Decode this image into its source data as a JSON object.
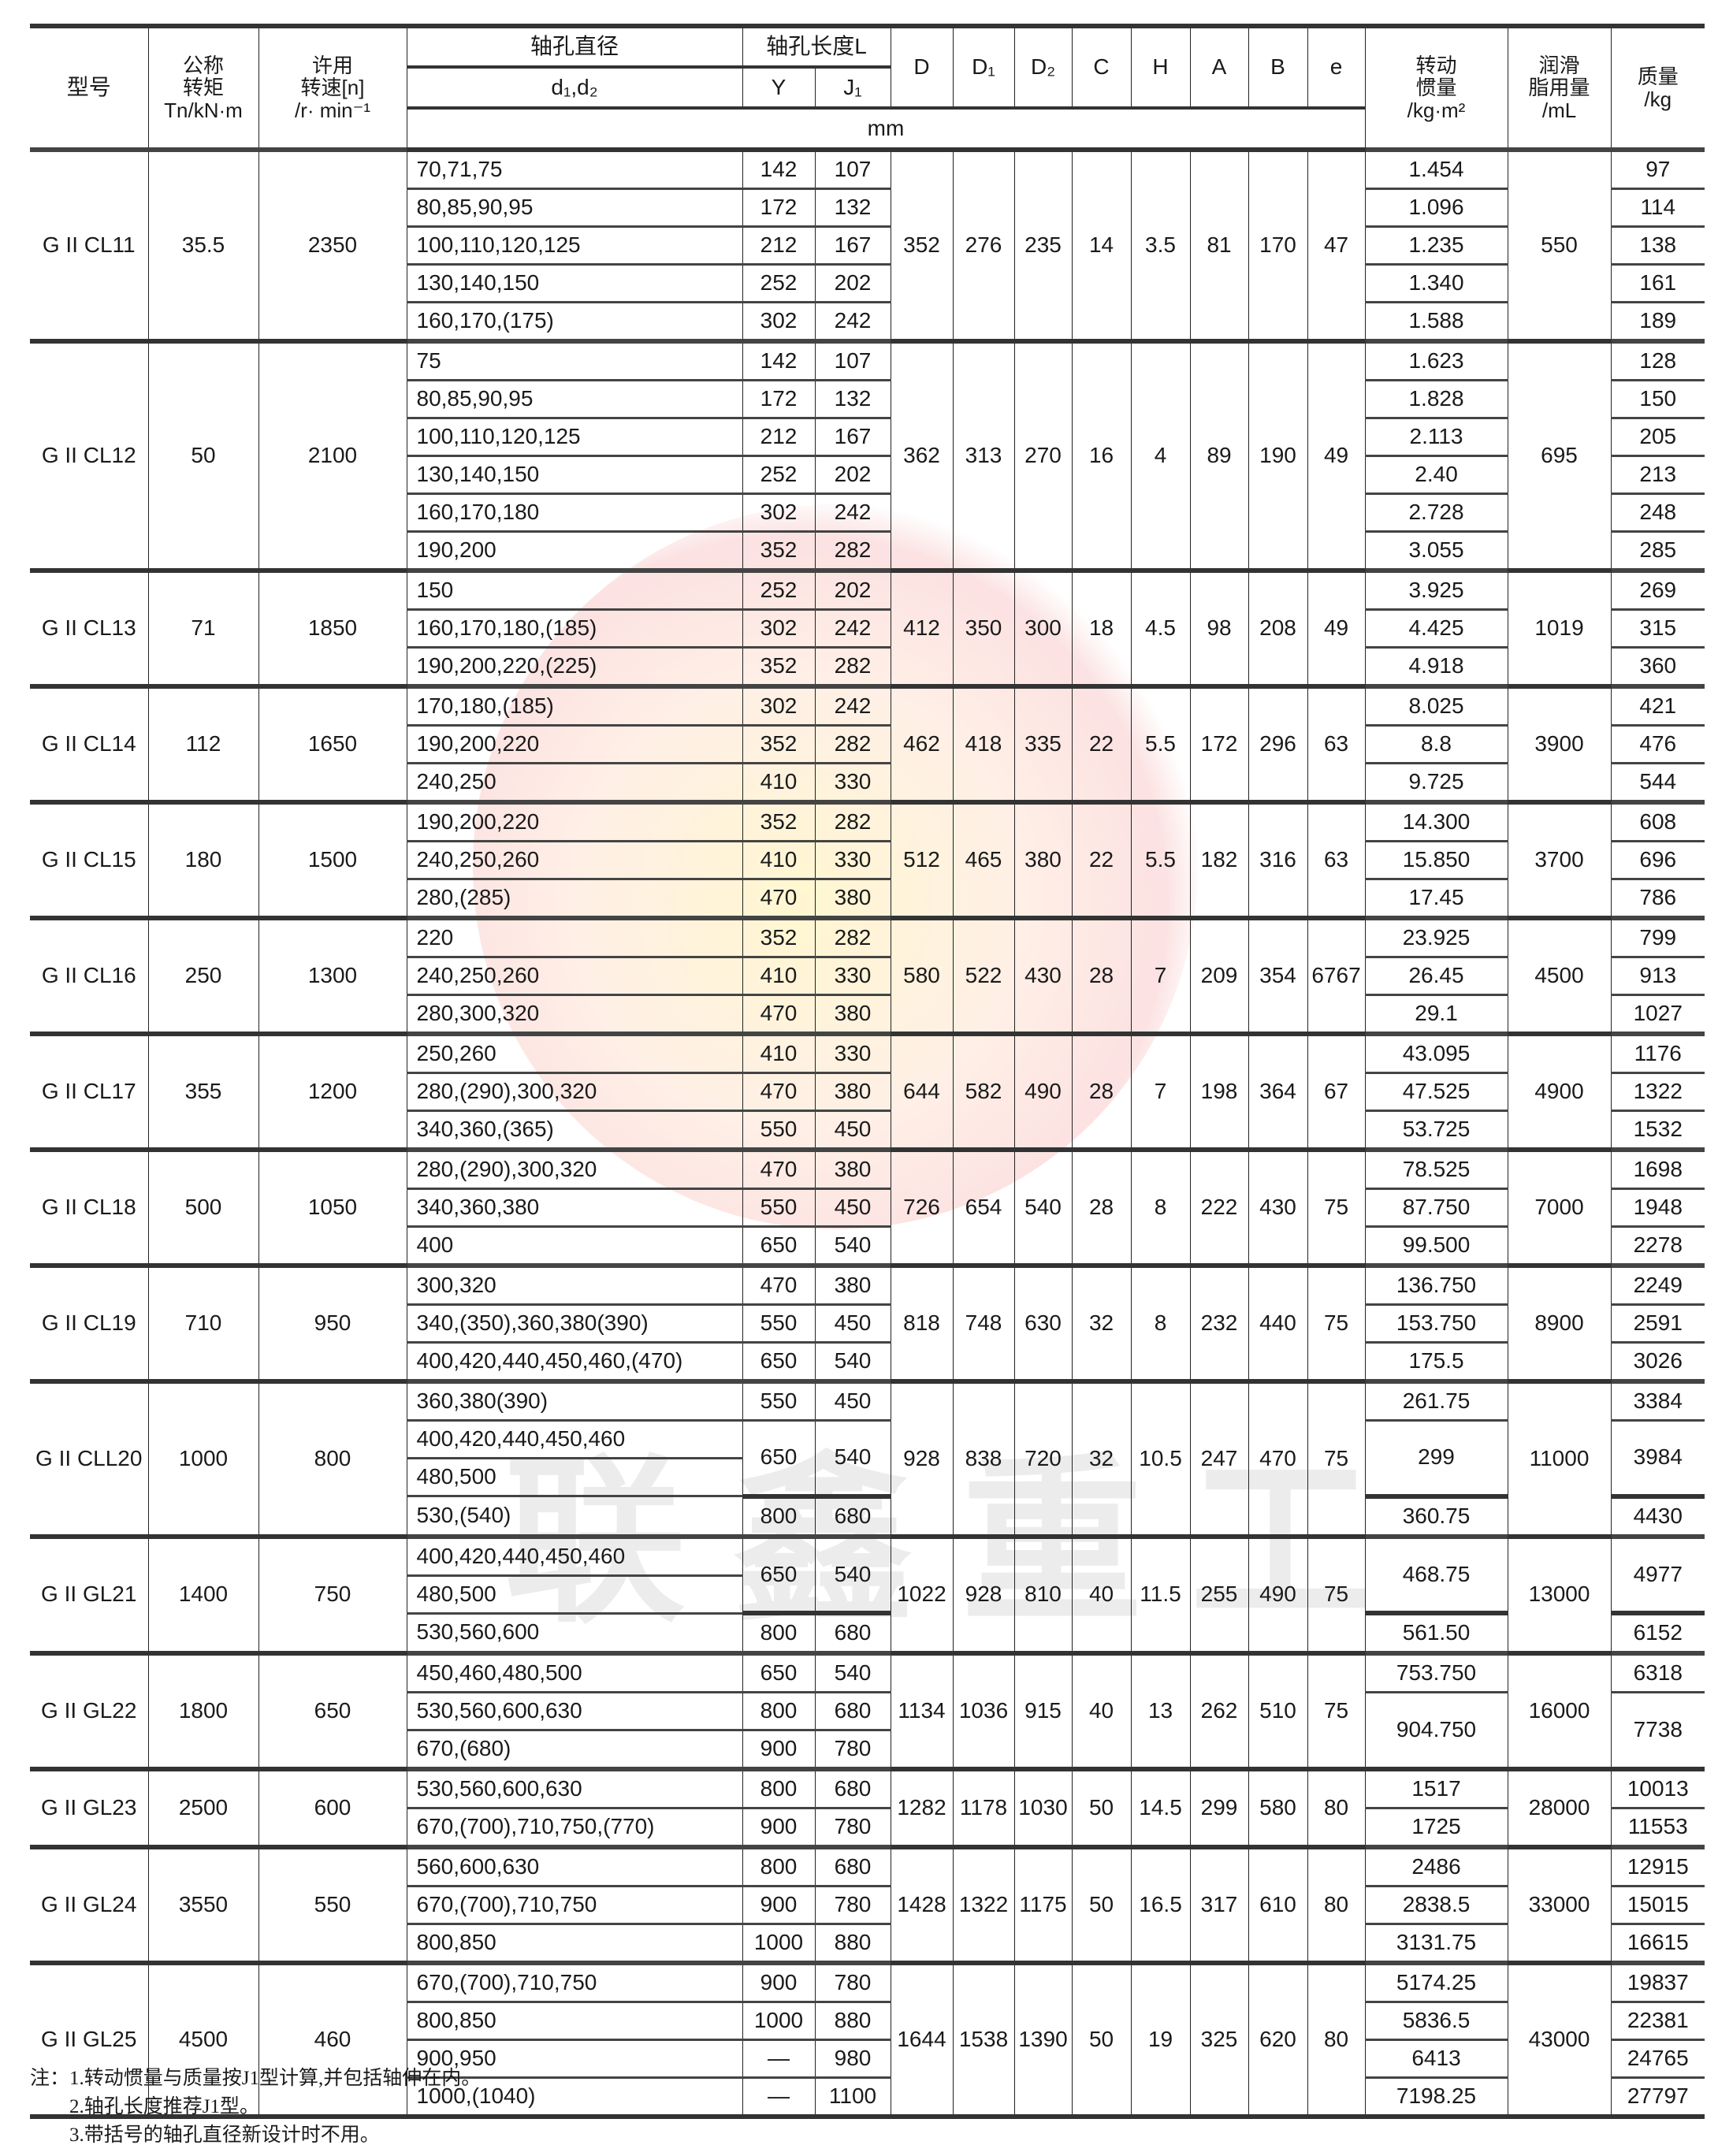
{
  "header": {
    "model": "型号",
    "torque": [
      "公称",
      "转矩",
      "Tn/kN·m"
    ],
    "speed": [
      "许用",
      "转速[n]",
      "/r·  min⁻¹"
    ],
    "bore_diameter": "轴孔直径",
    "bore_diameter_sub": "d₁,d₂",
    "bore_length": "轴孔长度L",
    "bore_length_y": "Y",
    "bore_length_j1": "J₁",
    "dims": [
      "D",
      "D₁",
      "D₂",
      "C",
      "H",
      "A",
      "B",
      "e"
    ],
    "dims_unit": "mm",
    "inertia": [
      "转动",
      "惯量",
      "/kg·m²"
    ],
    "grease": [
      "润滑",
      "脂用量",
      "/mL"
    ],
    "mass": [
      "质量",
      "/kg"
    ]
  },
  "groups": [
    {
      "model": "G II CL11",
      "torque": "35.5",
      "speed": "2350",
      "dims": [
        "352",
        "276",
        "235",
        "14",
        "3.5",
        "81",
        "170",
        "47"
      ],
      "grease": "550",
      "rows": [
        {
          "d": "70,71,75",
          "y": "142",
          "j1": "107",
          "inertia": "1.454",
          "mass": "97"
        },
        {
          "d": "80,85,90,95",
          "y": "172",
          "j1": "132",
          "inertia": "1.096",
          "mass": "114"
        },
        {
          "d": "100,110,120,125",
          "y": "212",
          "j1": "167",
          "inertia": "1.235",
          "mass": "138"
        },
        {
          "d": "130,140,150",
          "y": "252",
          "j1": "202",
          "inertia": "1.340",
          "mass": "161"
        },
        {
          "d": "160,170,(175)",
          "y": "302",
          "j1": "242",
          "inertia": "1.588",
          "mass": "189"
        }
      ]
    },
    {
      "model": "G II CL12",
      "torque": "50",
      "speed": "2100",
      "dims": [
        "362",
        "313",
        "270",
        "16",
        "4",
        "89",
        "190",
        "49"
      ],
      "grease": "695",
      "rows": [
        {
          "d": "75",
          "y": "142",
          "j1": "107",
          "inertia": "1.623",
          "mass": "128"
        },
        {
          "d": "80,85,90,95",
          "y": "172",
          "j1": "132",
          "inertia": "1.828",
          "mass": "150"
        },
        {
          "d": "100,110,120,125",
          "y": "212",
          "j1": "167",
          "inertia": "2.113",
          "mass": "205"
        },
        {
          "d": "130,140,150",
          "y": "252",
          "j1": "202",
          "inertia": "2.40",
          "mass": "213"
        },
        {
          "d": "160,170,180",
          "y": "302",
          "j1": "242",
          "inertia": "2.728",
          "mass": "248"
        },
        {
          "d": "190,200",
          "y": "352",
          "j1": "282",
          "inertia": "3.055",
          "mass": "285"
        }
      ]
    },
    {
      "model": "G II CL13",
      "torque": "71",
      "speed": "1850",
      "dims": [
        "412",
        "350",
        "300",
        "18",
        "4.5",
        "98",
        "208",
        "49"
      ],
      "grease": "1019",
      "rows": [
        {
          "d": "150",
          "y": "252",
          "j1": "202",
          "inertia": "3.925",
          "mass": "269"
        },
        {
          "d": "160,170,180,(185)",
          "y": "302",
          "j1": "242",
          "inertia": "4.425",
          "mass": "315"
        },
        {
          "d": "190,200,220,(225)",
          "y": "352",
          "j1": "282",
          "inertia": "4.918",
          "mass": "360"
        }
      ]
    },
    {
      "model": "G II CL14",
      "torque": "112",
      "speed": "1650",
      "dims": [
        "462",
        "418",
        "335",
        "22",
        "5.5",
        "172",
        "296",
        "63"
      ],
      "grease": "3900",
      "rows": [
        {
          "d": "170,180,(185)",
          "y": "302",
          "j1": "242",
          "inertia": "8.025",
          "mass": "421"
        },
        {
          "d": "190,200,220",
          "y": "352",
          "j1": "282",
          "inertia": "8.8",
          "mass": "476"
        },
        {
          "d": "240,250",
          "y": "410",
          "j1": "330",
          "inertia": "9.725",
          "mass": "544"
        }
      ]
    },
    {
      "model": "G II CL15",
      "torque": "180",
      "speed": "1500",
      "dims": [
        "512",
        "465",
        "380",
        "22",
        "5.5",
        "182",
        "316",
        "63"
      ],
      "grease": "3700",
      "rows": [
        {
          "d": "190,200,220",
          "y": "352",
          "j1": "282",
          "inertia": "14.300",
          "mass": "608"
        },
        {
          "d": "240,250,260",
          "y": "410",
          "j1": "330",
          "inertia": "15.850",
          "mass": "696"
        },
        {
          "d": "280,(285)",
          "y": "470",
          "j1": "380",
          "inertia": "17.45",
          "mass": "786"
        }
      ]
    },
    {
      "model": "G II CL16",
      "torque": "250",
      "speed": "1300",
      "dims": [
        "580",
        "522",
        "430",
        "28",
        "7",
        "209",
        "354",
        "6767"
      ],
      "grease": "4500",
      "rows": [
        {
          "d": "220",
          "y": "352",
          "j1": "282",
          "inertia": "23.925",
          "mass": "799"
        },
        {
          "d": "240,250,260",
          "y": "410",
          "j1": "330",
          "inertia": "26.45",
          "mass": "913"
        },
        {
          "d": "280,300,320",
          "y": "470",
          "j1": "380",
          "inertia": "29.1",
          "mass": "1027"
        }
      ]
    },
    {
      "model": "G II CL17",
      "torque": "355",
      "speed": "1200",
      "dims": [
        "644",
        "582",
        "490",
        "28",
        "7",
        "198",
        "364",
        "67"
      ],
      "grease": "4900",
      "rows": [
        {
          "d": "250,260",
          "y": "410",
          "j1": "330",
          "inertia": "43.095",
          "mass": "1176"
        },
        {
          "d": "280,(290),300,320",
          "y": "470",
          "j1": "380",
          "inertia": "47.525",
          "mass": "1322"
        },
        {
          "d": "340,360,(365)",
          "y": "550",
          "j1": "450",
          "inertia": "53.725",
          "mass": "1532"
        }
      ]
    },
    {
      "model": "G II CL18",
      "torque": "500",
      "speed": "1050",
      "dims": [
        "726",
        "654",
        "540",
        "28",
        "8",
        "222",
        "430",
        "75"
      ],
      "grease": "7000",
      "rows": [
        {
          "d": "280,(290),300,320",
          "y": "470",
          "j1": "380",
          "inertia": "78.525",
          "mass": "1698"
        },
        {
          "d": "340,360,380",
          "y": "550",
          "j1": "450",
          "inertia": "87.750",
          "mass": "1948"
        },
        {
          "d": "400",
          "y": "650",
          "j1": "540",
          "inertia": "99.500",
          "mass": "2278"
        }
      ]
    },
    {
      "model": "G II CL19",
      "torque": "710",
      "speed": "950",
      "dims": [
        "818",
        "748",
        "630",
        "32",
        "8",
        "232",
        "440",
        "75"
      ],
      "grease": "8900",
      "rows": [
        {
          "d": "300,320",
          "y": "470",
          "j1": "380",
          "inertia": "136.750",
          "mass": "2249"
        },
        {
          "d": "340,(350),360,380(390)",
          "y": "550",
          "j1": "450",
          "inertia": "153.750",
          "mass": "2591"
        },
        {
          "d": "400,420,440,450,460,(470)",
          "y": "650",
          "j1": "540",
          "inertia": "175.5",
          "mass": "3026"
        }
      ]
    },
    {
      "model": "G II CLL20",
      "torque": "1000",
      "speed": "800",
      "dims": [
        "928",
        "838",
        "720",
        "32",
        "10.5",
        "247",
        "470",
        "75"
      ],
      "grease": "11000",
      "rows": [
        {
          "d": "360,380(390)",
          "y": "550",
          "j1": "450",
          "inertia": "261.75",
          "mass": "3384"
        },
        {
          "d": "400,420,440,450,460",
          "y": "650",
          "j1": "540",
          "len_merge": 2,
          "inertia": "299",
          "mass": "3984",
          "val_merge": 2
        },
        {
          "d": "480,500",
          "y": null,
          "j1": null,
          "inertia": null,
          "mass": null
        },
        {
          "d": "530,(540)",
          "y": "800",
          "j1": "680",
          "inertia": "360.75",
          "mass": "4430"
        }
      ]
    },
    {
      "model": "G II GL21",
      "torque": "1400",
      "speed": "750",
      "dims": [
        "1022",
        "928",
        "810",
        "40",
        "11.5",
        "255",
        "490",
        "75"
      ],
      "grease": "13000",
      "rows": [
        {
          "d": "400,420,440,450,460",
          "y": "650",
          "j1": "540",
          "len_merge": 2,
          "inertia": "468.75",
          "mass": "4977",
          "val_merge": 2
        },
        {
          "d": "480,500",
          "y": null,
          "j1": null,
          "inertia": null,
          "mass": null
        },
        {
          "d": "530,560,600",
          "y": "800",
          "j1": "680",
          "inertia": "561.50",
          "mass": "6152"
        }
      ]
    },
    {
      "model": "G II GL22",
      "torque": "1800",
      "speed": "650",
      "dims": [
        "1134",
        "1036",
        "915",
        "40",
        "13",
        "262",
        "510",
        "75"
      ],
      "grease": "16000",
      "rows": [
        {
          "d": "450,460,480,500",
          "y": "650",
          "j1": "540",
          "inertia": "753.750",
          "mass": "6318"
        },
        {
          "d": "530,560,600,630",
          "y": "800",
          "j1": "680",
          "inertia": "904.750",
          "mass": "7738",
          "val_merge": 2
        },
        {
          "d": "670,(680)",
          "y": "900",
          "j1": "780",
          "inertia": null,
          "mass": null
        }
      ]
    },
    {
      "model": "G II GL23",
      "torque": "2500",
      "speed": "600",
      "dims": [
        "1282",
        "1178",
        "1030",
        "50",
        "14.5",
        "299",
        "580",
        "80"
      ],
      "grease": "28000",
      "rows": [
        {
          "d": "530,560,600,630",
          "y": "800",
          "j1": "680",
          "inertia": "1517",
          "mass": "10013"
        },
        {
          "d": "670,(700),710,750,(770)",
          "y": "900",
          "j1": "780",
          "inertia": "1725",
          "mass": "11553"
        }
      ]
    },
    {
      "model": "G II GL24",
      "torque": "3550",
      "speed": "550",
      "dims": [
        "1428",
        "1322",
        "1175",
        "50",
        "16.5",
        "317",
        "610",
        "80"
      ],
      "grease": "33000",
      "rows": [
        {
          "d": "560,600,630",
          "y": "800",
          "j1": "680",
          "inertia": "2486",
          "mass": "12915"
        },
        {
          "d": "670,(700),710,750",
          "y": "900",
          "j1": "780",
          "inertia": "2838.5",
          "mass": "15015"
        },
        {
          "d": "800,850",
          "y": "1000",
          "j1": "880",
          "inertia": "3131.75",
          "mass": "16615"
        }
      ]
    },
    {
      "model": "G II GL25",
      "torque": "4500",
      "speed": "460",
      "dims": [
        "1644",
        "1538",
        "1390",
        "50",
        "19",
        "325",
        "620",
        "80"
      ],
      "grease": "43000",
      "rows": [
        {
          "d": "670,(700),710,750",
          "y": "900",
          "j1": "780",
          "inertia": "5174.25",
          "mass": "19837"
        },
        {
          "d": "800,850",
          "y": "1000",
          "j1": "880",
          "inertia": "5836.5",
          "mass": "22381"
        },
        {
          "d": "900,950",
          "y": "—",
          "j1": "980",
          "inertia": "6413",
          "mass": "24765"
        },
        {
          "d": "1000,(1040)",
          "y": "—",
          "j1": "1100",
          "inertia": "7198.25",
          "mass": "27797"
        }
      ]
    }
  ],
  "notes": [
    "注：1.转动惯量与质量按J1型计算,并包括轴伸在内。",
    "2.轴孔长度推荐J1型。",
    "3.带括号的轴孔直径新设计时不用。"
  ],
  "watermark": "联鑫重工",
  "colors": {
    "watermark_red": "#f4aaaa",
    "watermark_yellow": "#fff0aa",
    "rule": "#333333"
  }
}
